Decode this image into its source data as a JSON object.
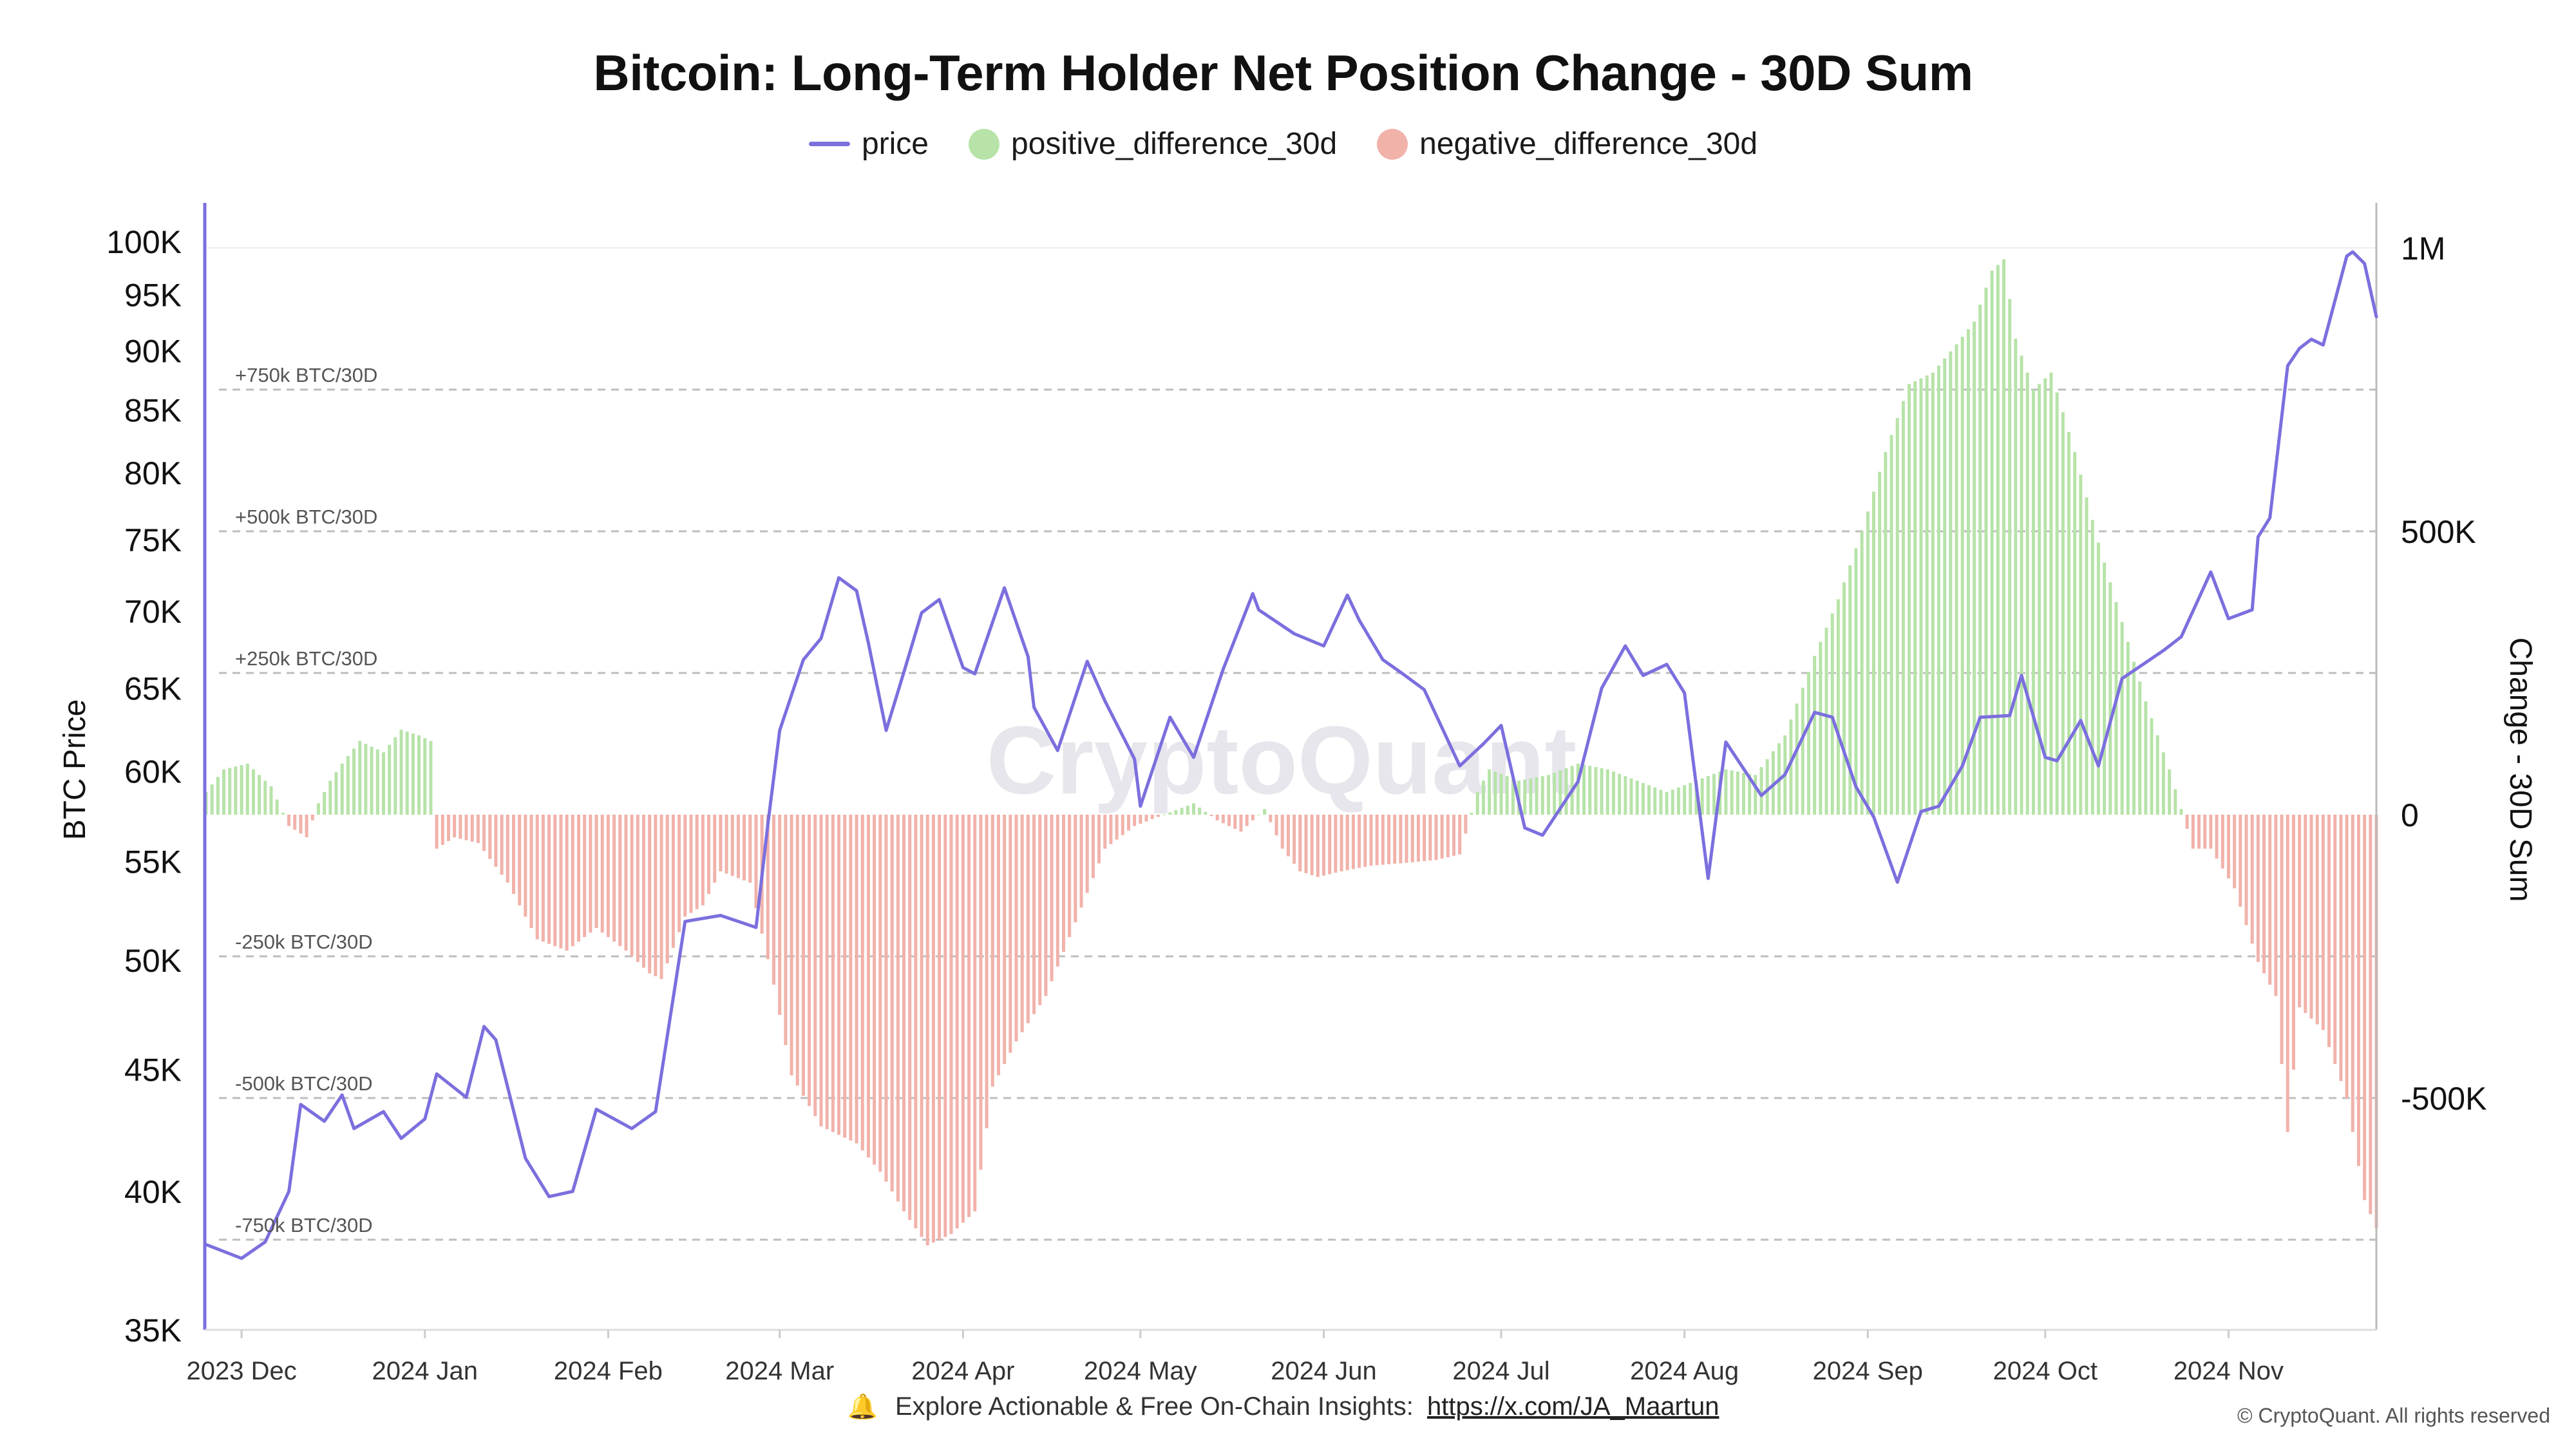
{
  "chart_data": {
    "type": "bar",
    "title": "Bitcoin: Long-Term Holder Net Position Change - 30D Sum",
    "left_axis": {
      "label": "BTC Price",
      "scale": "log",
      "ticks": [
        "35K",
        "40K",
        "45K",
        "50K",
        "55K",
        "60K",
        "65K",
        "70K",
        "75K",
        "80K",
        "85K",
        "90K",
        "95K",
        "100K"
      ],
      "tick_values": [
        35000,
        40000,
        45000,
        50000,
        55000,
        60000,
        65000,
        70000,
        75000,
        80000,
        85000,
        90000,
        95000,
        100000
      ]
    },
    "right_axis": {
      "label": "Change - 30D Sum",
      "ticks": [
        "1M",
        "500K",
        "0",
        "-500K"
      ],
      "tick_values": [
        1000000,
        500000,
        0,
        -500000
      ]
    },
    "x_ticks": [
      "2023 Dec",
      "2024 Jan",
      "2024 Feb",
      "2024 Mar",
      "2024 Apr",
      "2024 May",
      "2024 Jun",
      "2024 Jul",
      "2024 Aug",
      "2024 Sep",
      "2024 Oct",
      "2024 Nov"
    ],
    "x_tick_dates": [
      "2023-12-01",
      "2024-01-01",
      "2024-02-01",
      "2024-03-01",
      "2024-04-01",
      "2024-05-01",
      "2024-06-01",
      "2024-07-01",
      "2024-08-01",
      "2024-09-01",
      "2024-10-01",
      "2024-11-01"
    ],
    "date_range": [
      "2023-11-25",
      "2024-11-26"
    ],
    "reference_lines": [
      {
        "value": 750000,
        "label": "+750k BTC/30D"
      },
      {
        "value": 500000,
        "label": "+500k BTC/30D"
      },
      {
        "value": 250000,
        "label": "+250k BTC/30D"
      },
      {
        "value": -250000,
        "label": "-250k BTC/30D"
      },
      {
        "value": -500000,
        "label": "-500k BTC/30D"
      },
      {
        "value": -750000,
        "label": "-750k BTC/30D"
      }
    ],
    "legend": [
      "price",
      "positive_difference_30d",
      "negative_difference_30d"
    ],
    "legend_position": "top-center",
    "colors": {
      "price": "#7b6fde",
      "positive": "#b7e3a8",
      "negative": "#f1b2aa"
    },
    "price_series": {
      "name": "price",
      "dates": [
        "2023-11-25",
        "2023-12-01",
        "2023-12-05",
        "2023-12-09",
        "2023-12-11",
        "2023-12-15",
        "2023-12-18",
        "2023-12-20",
        "2023-12-25",
        "2023-12-28",
        "2024-01-01",
        "2024-01-03",
        "2024-01-08",
        "2024-01-11",
        "2024-01-13",
        "2024-01-18",
        "2024-01-22",
        "2024-01-26",
        "2024-01-30",
        "2024-02-05",
        "2024-02-09",
        "2024-02-14",
        "2024-02-20",
        "2024-02-26",
        "2024-02-28",
        "2024-03-01",
        "2024-03-05",
        "2024-03-08",
        "2024-03-11",
        "2024-03-14",
        "2024-03-16",
        "2024-03-19",
        "2024-03-22",
        "2024-03-25",
        "2024-03-28",
        "2024-04-01",
        "2024-04-03",
        "2024-04-08",
        "2024-04-12",
        "2024-04-13",
        "2024-04-17",
        "2024-04-22",
        "2024-04-25",
        "2024-04-30",
        "2024-05-01",
        "2024-05-06",
        "2024-05-10",
        "2024-05-15",
        "2024-05-20",
        "2024-05-21",
        "2024-05-27",
        "2024-06-01",
        "2024-06-05",
        "2024-06-07",
        "2024-06-11",
        "2024-06-14",
        "2024-06-18",
        "2024-06-24",
        "2024-06-28",
        "2024-07-01",
        "2024-07-05",
        "2024-07-08",
        "2024-07-14",
        "2024-07-18",
        "2024-07-22",
        "2024-07-25",
        "2024-07-29",
        "2024-08-01",
        "2024-08-05",
        "2024-08-08",
        "2024-08-14",
        "2024-08-18",
        "2024-08-23",
        "2024-08-26",
        "2024-08-30",
        "2024-09-02",
        "2024-09-06",
        "2024-09-10",
        "2024-09-13",
        "2024-09-17",
        "2024-09-20",
        "2024-09-25",
        "2024-09-27",
        "2024-10-01",
        "2024-10-03",
        "2024-10-07",
        "2024-10-10",
        "2024-10-14",
        "2024-10-21",
        "2024-10-24",
        "2024-10-29",
        "2024-11-01",
        "2024-11-05",
        "2024-11-06",
        "2024-11-08",
        "2024-11-11",
        "2024-11-13",
        "2024-11-15",
        "2024-11-17",
        "2024-11-21",
        "2024-11-22",
        "2024-11-24",
        "2024-11-26"
      ],
      "values": [
        38000,
        37500,
        38100,
        40000,
        43500,
        42800,
        43900,
        42500,
        43200,
        42100,
        42900,
        44800,
        43800,
        46900,
        46300,
        41300,
        39800,
        40000,
        43300,
        42500,
        43200,
        51900,
        52200,
        51600,
        57000,
        62400,
        66800,
        68200,
        72300,
        71400,
        67900,
        62400,
        66000,
        69900,
        70800,
        66300,
        65900,
        71600,
        67000,
        63800,
        61200,
        66700,
        64200,
        60700,
        58000,
        63200,
        60800,
        66200,
        71200,
        70100,
        68500,
        67700,
        71100,
        69400,
        66800,
        66000,
        64900,
        60300,
        61600,
        62700,
        56800,
        56400,
        59400,
        65000,
        67700,
        65800,
        66500,
        64700,
        54100,
        61700,
        58600,
        59800,
        63500,
        63200,
        59100,
        57400,
        53900,
        57700,
        58000,
        60300,
        63200,
        63300,
        65800,
        60800,
        60600,
        63000,
        60300,
        65600,
        67400,
        68300,
        72700,
        69500,
        70100,
        75200,
        76600,
        88700,
        90200,
        91000,
        90500,
        98600,
        99000,
        97900,
        93000
      ]
    },
    "bars": {
      "dates": [
        "2023-11-25",
        "2023-11-28",
        "2023-12-02",
        "2023-12-06",
        "2023-12-09",
        "2023-12-12",
        "2023-12-14",
        "2023-12-16",
        "2023-12-18",
        "2023-12-21",
        "2023-12-25",
        "2023-12-28",
        "2023-12-31",
        "2024-01-02",
        "2024-01-03",
        "2024-01-06",
        "2024-01-10",
        "2024-01-15",
        "2024-01-20",
        "2024-01-25",
        "2024-01-30",
        "2024-02-04",
        "2024-02-08",
        "2024-02-10",
        "2024-02-14",
        "2024-02-17",
        "2024-02-20",
        "2024-02-25",
        "2024-02-29",
        "2024-03-03",
        "2024-03-08",
        "2024-03-14",
        "2024-03-18",
        "2024-03-22",
        "2024-03-26",
        "2024-03-30",
        "2024-04-03",
        "2024-04-06",
        "2024-04-10",
        "2024-04-15",
        "2024-04-20",
        "2024-04-25",
        "2024-04-30",
        "2024-05-05",
        "2024-05-10",
        "2024-05-14",
        "2024-05-18",
        "2024-05-22",
        "2024-05-25",
        "2024-05-28",
        "2024-05-31",
        "2024-06-04",
        "2024-06-09",
        "2024-06-15",
        "2024-06-20",
        "2024-06-24",
        "2024-06-27",
        "2024-06-29",
        "2024-07-04",
        "2024-07-09",
        "2024-07-14",
        "2024-07-19",
        "2024-07-24",
        "2024-07-29",
        "2024-08-03",
        "2024-08-08",
        "2024-08-13",
        "2024-08-18",
        "2024-08-23",
        "2024-08-27",
        "2024-08-31",
        "2024-09-04",
        "2024-09-08",
        "2024-09-12",
        "2024-09-16",
        "2024-09-19",
        "2024-09-22",
        "2024-09-24",
        "2024-09-26",
        "2024-09-29",
        "2024-10-02",
        "2024-10-06",
        "2024-10-10",
        "2024-10-14",
        "2024-10-18",
        "2024-10-22",
        "2024-10-26",
        "2024-10-29",
        "2024-11-02",
        "2024-11-06",
        "2024-11-09",
        "2024-11-11",
        "2024-11-13",
        "2024-11-17",
        "2024-11-21",
        "2024-11-24",
        "2024-11-26"
      ],
      "values": [
        40000,
        80000,
        90000,
        50000,
        -20000,
        -40000,
        20000,
        60000,
        90000,
        130000,
        110000,
        150000,
        140000,
        130000,
        -60000,
        -40000,
        -50000,
        -120000,
        -220000,
        -240000,
        -200000,
        -240000,
        -280000,
        -290000,
        -180000,
        -160000,
        -100000,
        -120000,
        -300000,
        -460000,
        -550000,
        -580000,
        -630000,
        -700000,
        -760000,
        -740000,
        -700000,
        -480000,
        -400000,
        -320000,
        -190000,
        -60000,
        -20000,
        0,
        20000,
        -10000,
        -30000,
        10000,
        -60000,
        -100000,
        -110000,
        -100000,
        -90000,
        -85000,
        -80000,
        -70000,
        40000,
        80000,
        60000,
        70000,
        90000,
        80000,
        60000,
        40000,
        60000,
        80000,
        70000,
        140000,
        280000,
        380000,
        500000,
        640000,
        760000,
        780000,
        830000,
        870000,
        960000,
        980000,
        840000,
        750000,
        780000,
        640000,
        480000,
        340000,
        200000,
        80000,
        -60000,
        -60000,
        -130000,
        -260000,
        -320000,
        -560000,
        -340000,
        -380000,
        -500000,
        -680000,
        -730000
      ]
    }
  },
  "watermark": "CryptoQuant",
  "footer": {
    "text": "Explore Actionable & Free On-Chain Insights:",
    "link": "https://x.com/JA_Maartun",
    "copyright": "© CryptoQuant. All rights reserved"
  }
}
